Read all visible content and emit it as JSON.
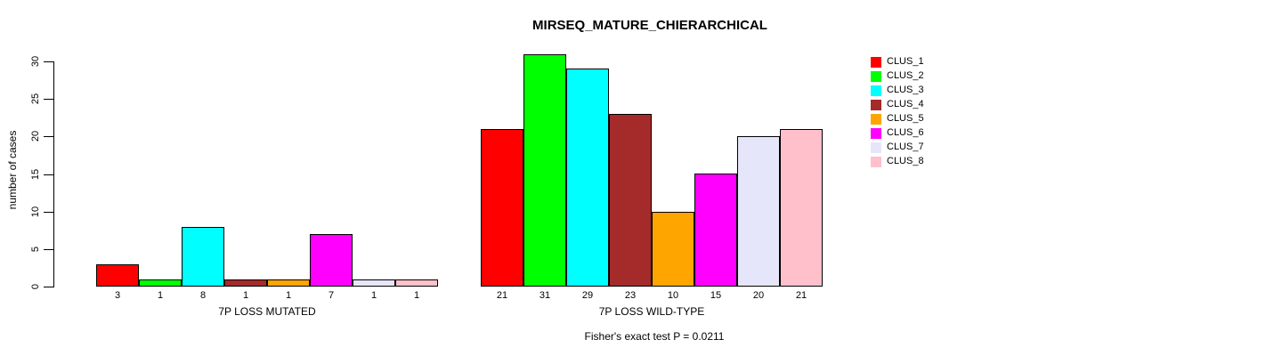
{
  "chart_data": {
    "type": "bar",
    "title": "MIRSEQ_MATURE_CHIERARCHICAL",
    "xlabel": "",
    "ylabel": "number of cases",
    "ylim": [
      0,
      30
    ],
    "yticks": [
      0,
      5,
      10,
      15,
      20,
      25,
      30
    ],
    "grid": false,
    "legend_position": "right",
    "bar_value_labels": true,
    "annotation": "Fisher's exact test P = 0.0211",
    "categories": [
      "7P LOSS MUTATED",
      "7P LOSS WILD-TYPE"
    ],
    "series": [
      {
        "name": "CLUS_1",
        "color": "#FF0000",
        "values": [
          3,
          21
        ]
      },
      {
        "name": "CLUS_2",
        "color": "#00FF00",
        "values": [
          1,
          31
        ]
      },
      {
        "name": "CLUS_3",
        "color": "#00FFFF",
        "values": [
          8,
          29
        ]
      },
      {
        "name": "CLUS_4",
        "color": "#A52A2A",
        "values": [
          1,
          23
        ]
      },
      {
        "name": "CLUS_5",
        "color": "#FFA500",
        "values": [
          1,
          10
        ]
      },
      {
        "name": "CLUS_6",
        "color": "#FF00FF",
        "values": [
          7,
          15
        ]
      },
      {
        "name": "CLUS_7",
        "color": "#E6E6FA",
        "values": [
          1,
          20
        ]
      },
      {
        "name": "CLUS_8",
        "color": "#FFC0CB",
        "values": [
          1,
          21
        ]
      }
    ],
    "colors": {
      "background": "#FFFFFF",
      "axis": "#000000",
      "bar_border": "#000000",
      "text": "#000000"
    }
  }
}
